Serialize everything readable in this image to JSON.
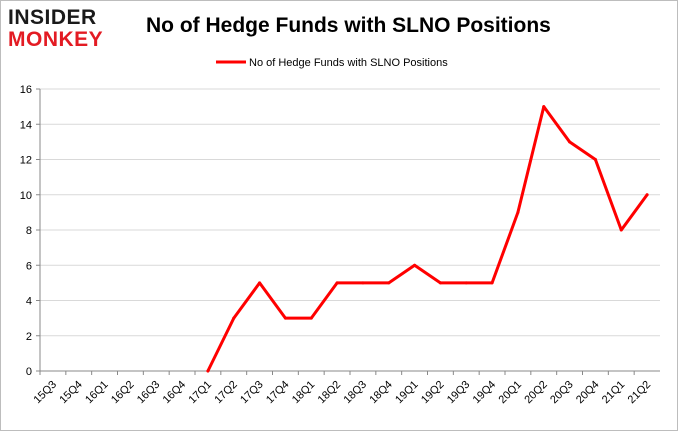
{
  "logo": {
    "line1": "INSIDER",
    "line2": "MONKEY"
  },
  "chart_data": {
    "type": "line",
    "title": "No of Hedge Funds with SLNO Positions",
    "xlabel": "",
    "ylabel": "",
    "categories": [
      "15Q3",
      "15Q4",
      "16Q1",
      "16Q2",
      "16Q3",
      "16Q4",
      "17Q1",
      "17Q2",
      "17Q3",
      "17Q4",
      "18Q1",
      "18Q2",
      "18Q3",
      "18Q4",
      "19Q1",
      "19Q2",
      "19Q3",
      "19Q4",
      "20Q1",
      "20Q2",
      "20Q3",
      "20Q4",
      "21Q1",
      "21Q2"
    ],
    "series": [
      {
        "name": "No of Hedge Funds with SLNO Positions",
        "color": "#ff0000",
        "values": [
          null,
          null,
          null,
          null,
          null,
          null,
          0,
          3,
          5,
          3,
          3,
          5,
          5,
          5,
          6,
          5,
          5,
          5,
          9,
          15,
          13,
          12,
          8,
          10
        ]
      }
    ],
    "ylim": [
      0,
      16
    ],
    "yticks": [
      0,
      2,
      4,
      6,
      8,
      10,
      12,
      14,
      16
    ],
    "grid": true,
    "legend": "top-center"
  }
}
